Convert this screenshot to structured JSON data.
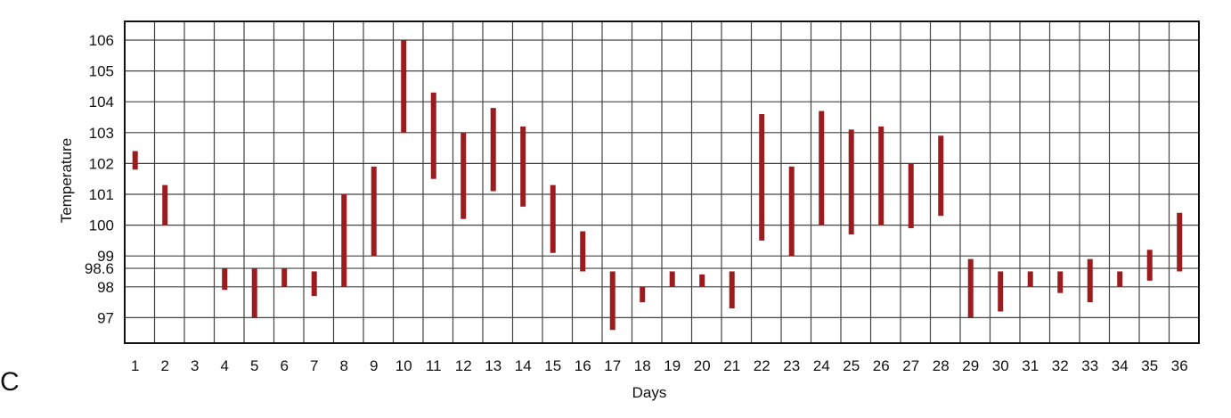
{
  "panel_label": "C",
  "chart_data": {
    "type": "range-bar",
    "title": "",
    "xlabel": "Days",
    "ylabel": "Temperature",
    "x": [
      1,
      2,
      3,
      4,
      5,
      6,
      7,
      8,
      9,
      10,
      11,
      12,
      13,
      14,
      15,
      16,
      17,
      18,
      19,
      20,
      21,
      22,
      23,
      24,
      25,
      26,
      27,
      28,
      29,
      30,
      31,
      32,
      33,
      34,
      35,
      36
    ],
    "y_ticks": [
      "106",
      "105",
      "104",
      "103",
      "102",
      "101",
      "100",
      "99",
      "98.6",
      "98",
      "97"
    ],
    "y_tick_values": [
      106,
      105,
      104,
      103,
      102,
      101,
      100,
      99,
      98.6,
      98,
      97
    ],
    "ylim": [
      96.6,
      106.6
    ],
    "grid": true,
    "series": [
      {
        "ranges": [
          [
            101.8,
            102.4
          ],
          [
            100.0,
            101.3
          ],
          null,
          [
            97.9,
            98.6
          ],
          [
            97.0,
            98.6
          ],
          [
            98.0,
            98.6
          ],
          [
            97.7,
            98.5
          ],
          [
            98.0,
            101.0
          ],
          [
            99.0,
            101.9
          ],
          [
            103.0,
            106.0
          ],
          [
            101.5,
            104.3
          ],
          [
            100.2,
            103.0
          ],
          [
            101.1,
            103.8
          ],
          [
            100.6,
            103.2
          ],
          [
            99.1,
            101.3
          ],
          [
            98.5,
            99.8
          ],
          [
            96.6,
            98.5
          ],
          [
            97.5,
            98.0
          ],
          [
            98.0,
            98.5
          ],
          [
            98.0,
            98.4
          ],
          [
            97.3,
            98.5
          ],
          [
            99.5,
            103.6
          ],
          [
            99.0,
            101.9
          ],
          [
            100.0,
            103.7
          ],
          [
            99.7,
            103.1
          ],
          [
            100.0,
            103.2
          ],
          [
            99.9,
            102.0
          ],
          [
            100.3,
            102.9
          ],
          [
            97.0,
            98.9
          ],
          [
            97.2,
            98.5
          ],
          [
            98.0,
            98.5
          ],
          [
            97.8,
            98.5
          ],
          [
            97.5,
            98.9
          ],
          [
            98.0,
            98.5
          ],
          [
            98.2,
            99.2
          ],
          [
            98.5,
            100.4
          ]
        ],
        "color": "#9b1b1e"
      }
    ]
  }
}
